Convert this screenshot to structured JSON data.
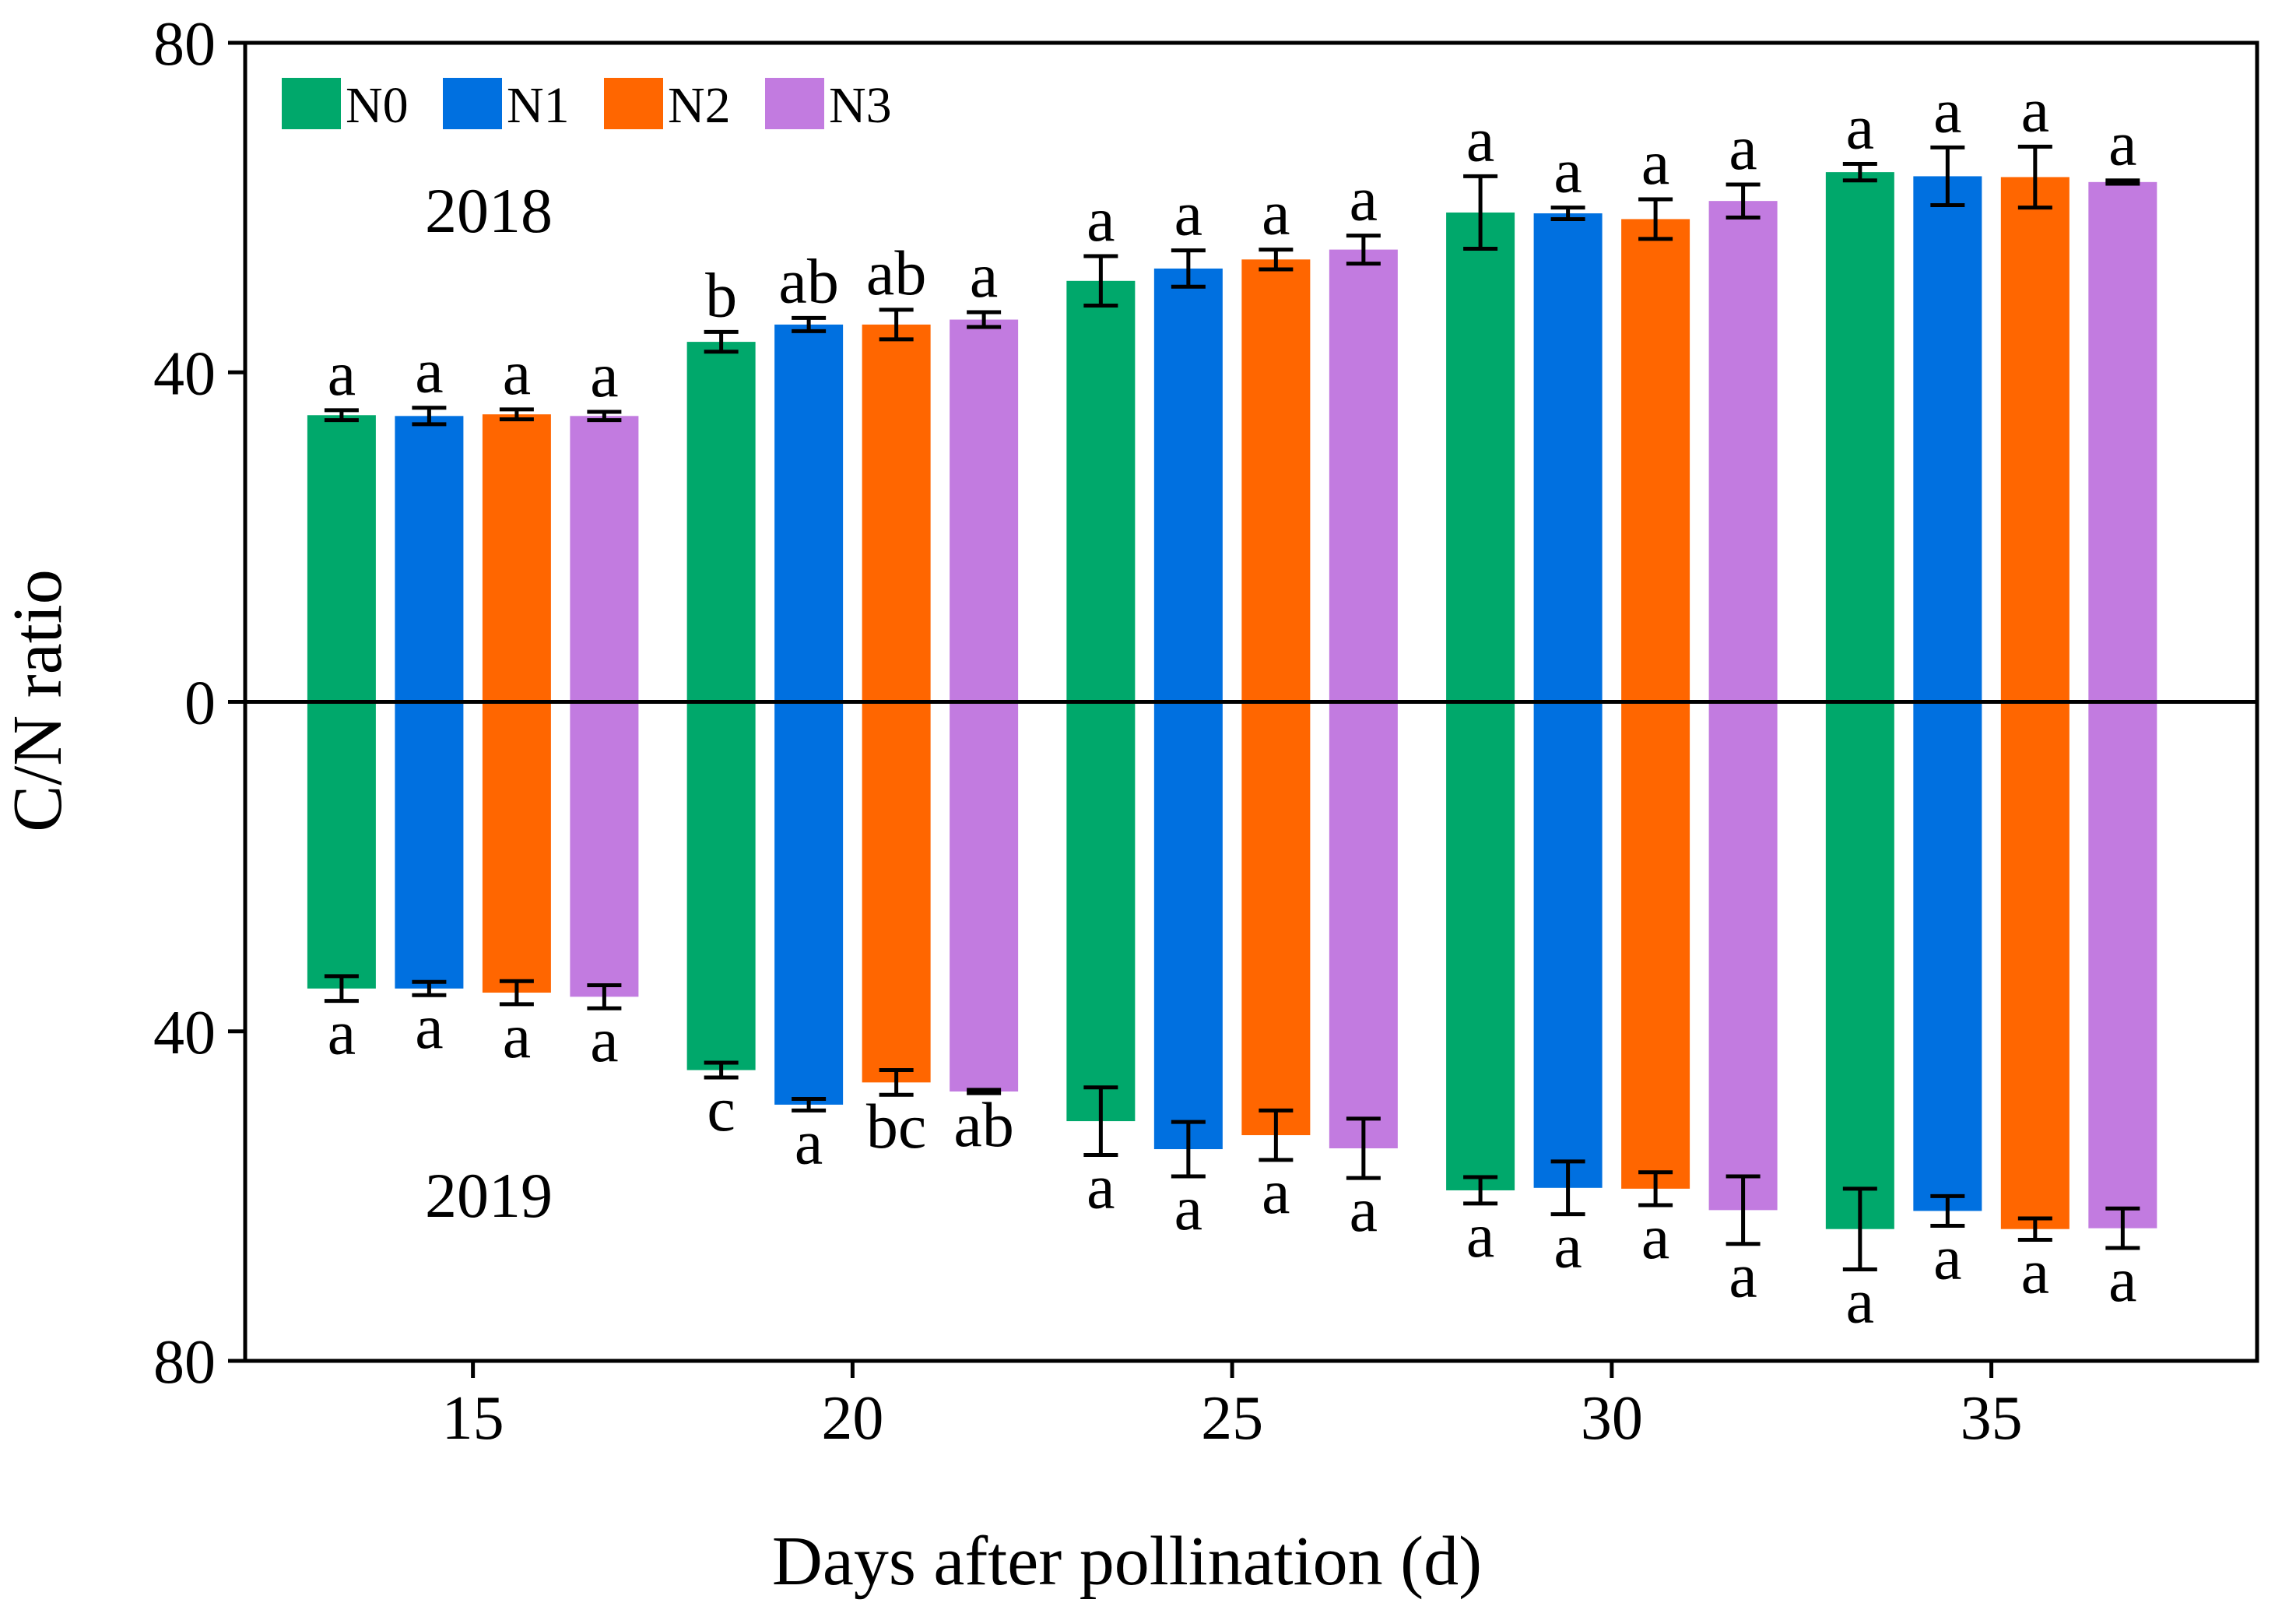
{
  "chart_data": {
    "type": "bar",
    "xlabel": "Days after pollination (d)",
    "ylabel": "C/N ratio",
    "x_ticks": [
      "15",
      "20",
      "25",
      "30",
      "35"
    ],
    "y_ticks": [
      {
        "value": 80,
        "label": "80"
      },
      {
        "value": 40,
        "label": "40"
      },
      {
        "value": 0,
        "label": "0"
      },
      {
        "value": -40,
        "label": "40"
      },
      {
        "value": -80,
        "label": "80"
      }
    ],
    "ylim": [
      -80,
      80
    ],
    "xlim": [
      12,
      38.5
    ],
    "legend": {
      "placement": "top-left",
      "entries": [
        "N0",
        "N1",
        "N2",
        "N3"
      ]
    },
    "panel_labels": {
      "top": "2018",
      "bottom": "2019"
    },
    "series": [
      {
        "name": "N0",
        "color": "#00A86B"
      },
      {
        "name": "N1",
        "color": "#0070E0"
      },
      {
        "name": "N2",
        "color": "#FF6600"
      },
      {
        "name": "N3",
        "color": "#C27BE0"
      }
    ],
    "groups": [
      {
        "day": 15,
        "y2018": [
          34.8,
          34.7,
          34.9,
          34.7
        ],
        "err2018": [
          0.6,
          1.0,
          0.6,
          0.5
        ],
        "let2018": [
          "a",
          "a",
          "a",
          "a"
        ],
        "y2019": [
          34.8,
          34.8,
          35.3,
          35.8
        ],
        "err2019": [
          1.5,
          0.8,
          1.4,
          1.4
        ],
        "let2019": [
          "a",
          "a",
          "a",
          "a"
        ]
      },
      {
        "day": 20,
        "y2018": [
          43.7,
          45.8,
          45.8,
          46.4
        ],
        "err2018": [
          1.2,
          0.8,
          1.8,
          0.9
        ],
        "let2018": [
          "b",
          "ab",
          "ab",
          "a"
        ],
        "y2019": [
          44.7,
          48.9,
          46.2,
          47.3
        ],
        "err2019": [
          0.9,
          0.7,
          1.5,
          0.2
        ],
        "let2019": [
          "c",
          "a",
          "bc",
          "ab"
        ]
      },
      {
        "day": 25,
        "y2018": [
          51.1,
          52.6,
          53.7,
          54.9
        ],
        "err2018": [
          3.0,
          2.2,
          1.2,
          1.7
        ],
        "let2018": [
          "a",
          "a",
          "a",
          "a"
        ],
        "y2019": [
          50.9,
          54.3,
          52.6,
          54.2
        ],
        "err2019": [
          4.1,
          3.3,
          3.0,
          3.6
        ],
        "let2019": [
          "a",
          "a",
          "a",
          "a"
        ]
      },
      {
        "day": 30,
        "y2018": [
          59.4,
          59.3,
          58.6,
          60.8
        ],
        "err2018": [
          4.4,
          0.7,
          2.4,
          2.0
        ],
        "let2018": [
          "a",
          "a",
          "a",
          "a"
        ],
        "y2019": [
          59.3,
          59.0,
          59.1,
          61.7
        ],
        "err2019": [
          1.6,
          3.2,
          2.0,
          4.1
        ],
        "let2019": [
          "a",
          "a",
          "a",
          "a"
        ]
      },
      {
        "day": 35,
        "y2018": [
          64.3,
          63.8,
          63.7,
          63.1
        ],
        "err2018": [
          1.0,
          3.5,
          3.7,
          0.2
        ],
        "let2018": [
          "a",
          "a",
          "a",
          "a"
        ],
        "y2019": [
          64.0,
          61.8,
          64.0,
          63.9
        ],
        "err2019": [
          4.9,
          1.8,
          1.3,
          2.4
        ],
        "let2019": [
          "a",
          "a",
          "a",
          "a"
        ]
      }
    ]
  }
}
